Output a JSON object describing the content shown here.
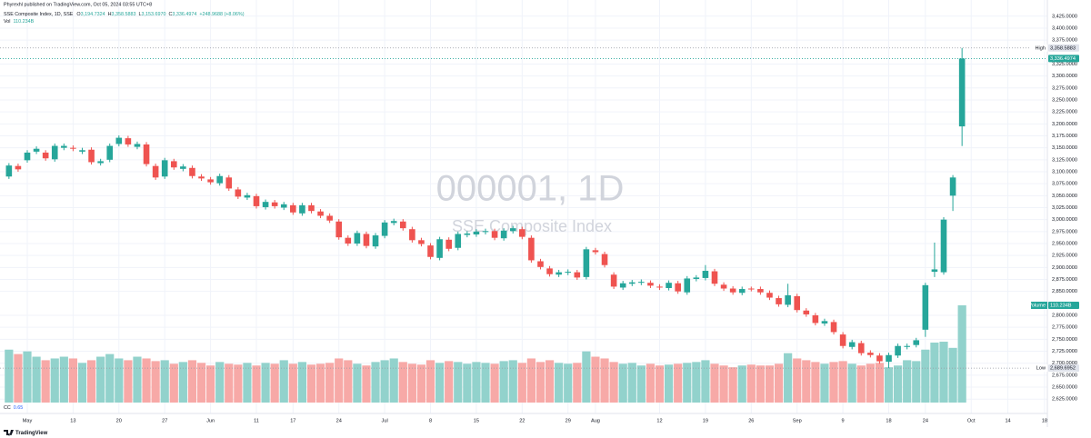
{
  "header": {
    "publisher": "Phyrexhl published on TradingView.com, Oct 05, 2024 03:55 UTC+8"
  },
  "footer": "TradingView",
  "chart_data": {
    "type": "candlestick",
    "title": "SSE Composite Index, 1D, SSE",
    "watermark": "000001, 1D",
    "watermark_subtitle": "SSE Composite Index",
    "legend": [
      {
        "key": "O",
        "value": "3,194.7324"
      },
      {
        "key": "H",
        "value": "3,358.5883"
      },
      {
        "key": "L",
        "value": "3,153.6970"
      },
      {
        "key": "C",
        "value": "3,336.4974"
      }
    ],
    "change": "+248.9688 (+8.06%)",
    "volume_legend": {
      "key": "Vol",
      "value": "110.234B"
    },
    "indicator": {
      "name": "CC",
      "value": 0.65
    },
    "categories": [
      null,
      null,
      "May",
      null,
      null,
      null,
      null,
      "13",
      null,
      null,
      null,
      null,
      "20",
      null,
      null,
      null,
      null,
      "27",
      null,
      null,
      null,
      null,
      "Jun",
      null,
      null,
      null,
      null,
      "11",
      null,
      null,
      null,
      "17",
      null,
      null,
      null,
      null,
      "24",
      null,
      null,
      null,
      null,
      "Jul",
      null,
      null,
      null,
      null,
      "8",
      null,
      null,
      null,
      null,
      "15",
      null,
      null,
      null,
      null,
      "22",
      null,
      null,
      null,
      null,
      "29",
      null,
      null,
      "Aug",
      null,
      null,
      null,
      null,
      null,
      null,
      "12",
      null,
      null,
      null,
      null,
      "19",
      null,
      null,
      null,
      null,
      "26",
      null,
      null,
      null,
      null,
      "Sep",
      null,
      null,
      null,
      null,
      "9",
      null,
      null,
      null,
      null,
      "18",
      null,
      null,
      null,
      "24",
      null,
      null,
      null,
      null,
      "Oct",
      null,
      null,
      null,
      "14",
      null,
      null,
      null,
      "18"
    ],
    "open": [
      3090,
      3112,
      3124,
      3142,
      3140,
      3126,
      3150,
      3150,
      3142,
      3146,
      3118,
      3125,
      3158,
      3170,
      3152,
      3157,
      3112,
      3090,
      3122,
      3106,
      3108,
      3090,
      3084,
      3076,
      3088,
      3063,
      3046,
      3049,
      3026,
      3036,
      3025,
      3030,
      3013,
      3030,
      3017,
      3008,
      2996,
      2962,
      2950,
      2970,
      2944,
      2966,
      2993,
      2996,
      2980,
      2957,
      2946,
      2920,
      2958,
      2941,
      2968,
      2969,
      2974,
      2976,
      2961,
      2976,
      2980,
      2962,
      2913,
      2898,
      2885,
      2889,
      2890,
      2880,
      2936,
      2928,
      2885,
      2858,
      2866,
      2868,
      2868,
      2860,
      2857,
      2867,
      2848,
      2876,
      2878,
      2892,
      2864,
      2856,
      2847,
      2856,
      2855,
      2847,
      2836,
      2822,
      2840,
      2810,
      2800,
      2783,
      2786,
      2760,
      2734,
      2742,
      2722,
      2716,
      2703,
      2716,
      2734,
      2738,
      2770,
      2891,
      2890,
      3050,
      3194.7324,
      null,
      null,
      null,
      null,
      null,
      null,
      null,
      null,
      null
    ],
    "high": [
      3118,
      3117,
      3145,
      3153,
      3145,
      3159,
      3159,
      3155,
      3150,
      3151,
      3127,
      3159,
      3176,
      3175,
      3163,
      3162,
      3117,
      3129,
      3127,
      3116,
      3113,
      3095,
      3089,
      3096,
      3093,
      3068,
      3056,
      3054,
      3042,
      3041,
      3037,
      3035,
      3035,
      3035,
      3022,
      3013,
      3001,
      2967,
      2977,
      2975,
      2972,
      2999,
      3002,
      3001,
      2985,
      2962,
      2951,
      2964,
      2963,
      2975,
      2976,
      2980,
      2981,
      2981,
      2982,
      2987,
      2985,
      2967,
      2918,
      2903,
      2895,
      2896,
      2895,
      2943,
      2941,
      2933,
      2890,
      2872,
      2874,
      2875,
      2873,
      2865,
      2873,
      2872,
      2882,
      2884,
      2905,
      2897,
      2869,
      2861,
      2860,
      2860,
      2860,
      2852,
      2841,
      2866,
      2845,
      2815,
      2805,
      2793,
      2791,
      2765,
      2749,
      2747,
      2727,
      2721,
      2722,
      2741,
      2741,
      2753,
      2868,
      2952,
      3005,
      3093,
      3358.5883,
      null,
      null,
      null,
      null,
      null,
      null,
      null,
      null,
      null
    ],
    "low": [
      3085,
      3100,
      3119,
      3137,
      3123,
      3121,
      3145,
      3143,
      3137,
      3115,
      3113,
      3120,
      3153,
      3152,
      3147,
      3111,
      3083,
      3085,
      3104,
      3101,
      3086,
      3081,
      3073,
      3071,
      3060,
      3043,
      3041,
      3023,
      3021,
      3023,
      3020,
      3010,
      3008,
      3013,
      3003,
      2993,
      2958,
      2945,
      2945,
      2940,
      2939,
      2961,
      2988,
      2977,
      2952,
      2944,
      2917,
      2915,
      2934,
      2936,
      2963,
      2964,
      2969,
      2957,
      2956,
      2971,
      2959,
      2910,
      2896,
      2881,
      2880,
      2884,
      2874,
      2875,
      2927,
      2900,
      2855,
      2853,
      2861,
      2863,
      2857,
      2853,
      2852,
      2845,
      2843,
      2871,
      2873,
      2861,
      2851,
      2843,
      2842,
      2850,
      2843,
      2832,
      2818,
      2817,
      2806,
      2797,
      2779,
      2778,
      2760,
      2731,
      2729,
      2716,
      2712,
      2699,
      2689.6952,
      2711,
      2729,
      2733,
      2755,
      2880,
      2885,
      3018,
      3153.697,
      null,
      null,
      null,
      null,
      null,
      null,
      null,
      null,
      null
    ],
    "close": [
      3113,
      3105,
      3140,
      3148,
      3128,
      3154,
      3154,
      3148,
      3145,
      3120,
      3122,
      3154,
      3171,
      3157,
      3158,
      3116,
      3088,
      3124,
      3109,
      3111,
      3091,
      3086,
      3078,
      3091,
      3065,
      3048,
      3051,
      3028,
      3037,
      3028,
      3032,
      3015,
      3030,
      3018,
      3008,
      2998,
      2963,
      2950,
      2972,
      2945,
      2967,
      2994,
      2997,
      2982,
      2957,
      2949,
      2922,
      2959,
      2939,
      2970,
      2971,
      2975,
      2976,
      2962,
      2977,
      2982,
      2964,
      2915,
      2901,
      2886,
      2890,
      2891,
      2879,
      2938,
      2932,
      2905,
      2860,
      2867,
      2869,
      2870,
      2862,
      2858,
      2868,
      2850,
      2877,
      2879,
      2893,
      2866,
      2856,
      2848,
      2855,
      2855,
      2848,
      2837,
      2823,
      2842,
      2811,
      2802,
      2784,
      2788,
      2765,
      2736,
      2744,
      2721,
      2717,
      2704,
      2717,
      2736,
      2736,
      2748,
      2863,
      2896,
      3000,
      3088,
      3336.4974,
      null,
      null,
      null,
      null,
      null,
      null,
      null,
      null,
      null
    ],
    "volume": [
      60,
      55,
      58,
      52,
      48,
      50,
      52,
      50,
      45,
      48,
      52,
      55,
      50,
      48,
      52,
      50,
      47,
      48,
      44,
      46,
      48,
      45,
      42,
      46,
      44,
      43,
      45,
      42,
      45,
      44,
      48,
      44,
      46,
      43,
      44,
      45,
      50,
      48,
      44,
      42,
      46,
      48,
      50,
      46,
      44,
      43,
      48,
      45,
      47,
      46,
      44,
      46,
      45,
      44,
      47,
      48,
      45,
      50,
      46,
      48,
      45,
      44,
      45,
      58,
      52,
      50,
      46,
      44,
      45,
      42,
      44,
      42,
      43,
      44,
      45,
      46,
      48,
      44,
      42,
      40,
      42,
      43,
      42,
      42,
      44,
      56,
      50,
      48,
      46,
      44,
      46,
      47,
      44,
      42,
      44,
      45,
      40,
      42,
      48,
      47,
      60,
      68,
      69,
      62,
      110.234,
      null,
      null,
      null,
      null,
      null,
      null,
      null,
      null,
      null
    ],
    "up_color": "#26a69a",
    "down_color": "#ef5350",
    "volume_up_color": "#92d2cc",
    "volume_down_color": "#f7a9a7",
    "ylim": [
      2595,
      3436
    ],
    "volume_lim": [
      0,
      444
    ],
    "yticks": [
      {
        "value": 2625,
        "label": "2,625.0000"
      },
      {
        "value": 2650,
        "label": "2,650.0000"
      },
      {
        "value": 2675,
        "label": "2,675.0000"
      },
      {
        "value": 2700,
        "label": "2,700.0000"
      },
      {
        "value": 2725,
        "label": "2,725.0000"
      },
      {
        "value": 2750,
        "label": "2,750.0000"
      },
      {
        "value": 2775,
        "label": "2,775.0000"
      },
      {
        "value": 2800,
        "label": "2,800.0000"
      },
      {
        "value": 2850,
        "label": "2,850.0000"
      },
      {
        "value": 2875,
        "label": "2,875.0000"
      },
      {
        "value": 2900,
        "label": "2,900.0000"
      },
      {
        "value": 2925,
        "label": "2,925.0000"
      },
      {
        "value": 2950,
        "label": "2,950.0000"
      },
      {
        "value": 2975,
        "label": "2,975.0000"
      },
      {
        "value": 3000,
        "label": "3,000.0000"
      },
      {
        "value": 3025,
        "label": "3,025.0000"
      },
      {
        "value": 3050,
        "label": "3,050.0000"
      },
      {
        "value": 3075,
        "label": "3,075.0000"
      },
      {
        "value": 3100,
        "label": "3,100.0000"
      },
      {
        "value": 3125,
        "label": "3,125.0000"
      },
      {
        "value": 3150,
        "label": "3,150.0000"
      },
      {
        "value": 3175,
        "label": "3,175.0000"
      },
      {
        "value": 3200,
        "label": "3,200.0000"
      },
      {
        "value": 3225,
        "label": "3,225.0000"
      },
      {
        "value": 3250,
        "label": "3,250.0000"
      },
      {
        "value": 3275,
        "label": "3,275.0000"
      },
      {
        "value": 3300,
        "label": "3,300.0000"
      },
      {
        "value": 3325,
        "label": "3,325.0000"
      },
      {
        "value": 3375,
        "label": "3,375.0000"
      },
      {
        "value": 3400,
        "label": "3,400.0000"
      },
      {
        "value": 3425,
        "label": "3,425.0000"
      }
    ],
    "grid": true,
    "high_line": {
      "name": "High",
      "value": 3358.5883,
      "label": "3,358.5883"
    },
    "last_price": {
      "value": 3336.4974,
      "label": "3,336.4974"
    },
    "low_line": {
      "name": "Low",
      "value": 2689.6952,
      "label": "2,689.6952"
    },
    "volume_marker": {
      "name": "Volume",
      "value": 110.234,
      "label": "110.234B"
    }
  }
}
